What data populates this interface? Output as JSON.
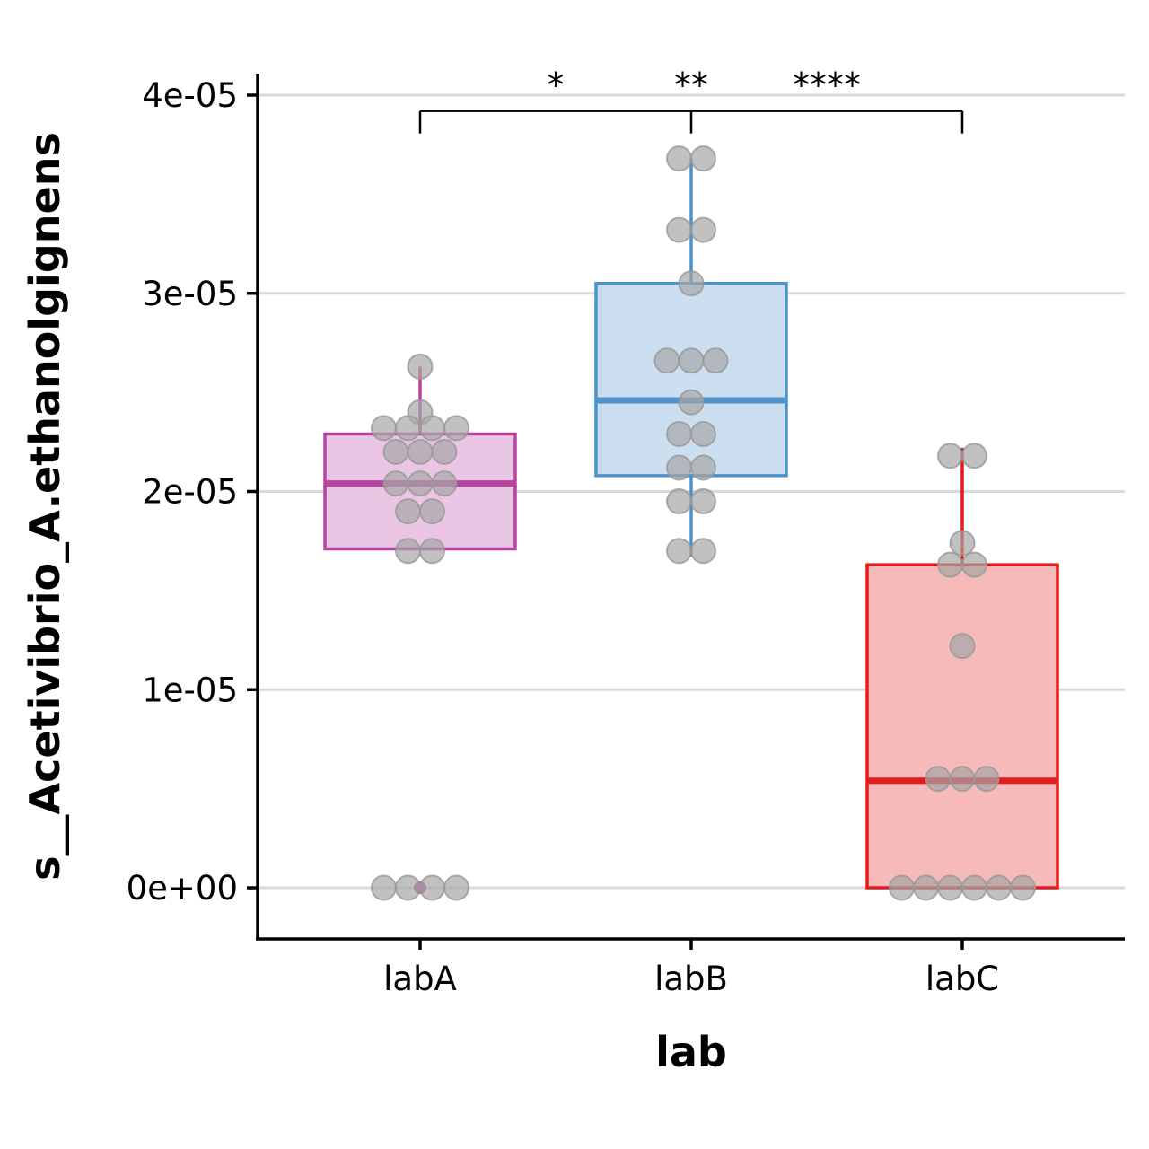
{
  "chart_data": {
    "type": "box",
    "xlabel": "lab",
    "ylabel": "s__Acetivibrio_A.ethanolgignens",
    "categories": [
      "labA",
      "labB",
      "labC"
    ],
    "ylim": [
      -2.6e-06,
      4.12e-05
    ],
    "yticks": [
      {
        "value": 0,
        "label": "0e+00"
      },
      {
        "value": 1e-05,
        "label": "1e-05"
      },
      {
        "value": 2e-05,
        "label": "2e-05"
      },
      {
        "value": 3e-05,
        "label": "3e-05"
      },
      {
        "value": 4e-05,
        "label": "4e-05"
      }
    ],
    "grid": "horizontal major",
    "boxes": [
      {
        "name": "labA",
        "color": "#b7449f",
        "fill": "#ebc6e4",
        "whisker_low": 1.71e-05,
        "q1": 1.71e-05,
        "median": 2.04e-05,
        "q3": 2.29e-05,
        "whisker_high": 2.63e-05,
        "outliers": [
          0
        ]
      },
      {
        "name": "labB",
        "color": "#4d92c9",
        "fill": "#cbdff0",
        "whisker_low": 1.67e-05,
        "q1": 2.08e-05,
        "median": 2.46e-05,
        "q3": 3.05e-05,
        "whisker_high": 3.68e-05,
        "outliers": []
      },
      {
        "name": "labC",
        "color": "#e41a1c",
        "fill": "#f6baba",
        "whisker_low": 0,
        "q1": 0,
        "median": 5.4e-06,
        "q3": 1.63e-05,
        "whisker_high": 2.22e-05,
        "outliers": []
      }
    ],
    "points": [
      {
        "group": "labA",
        "values": [
          2.63e-05,
          2.4e-05,
          2.32e-05,
          2.32e-05,
          2.32e-05,
          2.32e-05,
          2.2e-05,
          2.2e-05,
          2.2e-05,
          2.04e-05,
          2.04e-05,
          2.04e-05,
          1.9e-05,
          1.9e-05,
          1.7e-05,
          1.7e-05,
          0,
          0,
          0,
          0
        ]
      },
      {
        "group": "labB",
        "values": [
          3.68e-05,
          3.68e-05,
          3.32e-05,
          3.32e-05,
          3.05e-05,
          2.66e-05,
          2.66e-05,
          2.66e-05,
          2.45e-05,
          2.29e-05,
          2.29e-05,
          2.12e-05,
          2.12e-05,
          1.95e-05,
          1.95e-05,
          1.7e-05,
          1.7e-05
        ]
      },
      {
        "group": "labC",
        "values": [
          2.18e-05,
          2.18e-05,
          1.74e-05,
          1.63e-05,
          1.63e-05,
          1.22e-05,
          5.5e-06,
          5.5e-06,
          5.5e-06,
          0,
          0,
          0,
          0,
          0,
          0
        ]
      }
    ],
    "point_color": "#a6a6a6",
    "significance": {
      "bracket": {
        "from": "labA",
        "to": "labC",
        "mid": "labB",
        "y": 3.92e-05
      },
      "labels": [
        "*",
        "**",
        "****"
      ]
    }
  }
}
